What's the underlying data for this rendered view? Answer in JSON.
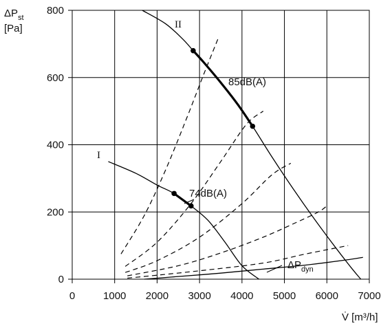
{
  "chart_data": {
    "type": "line",
    "x_axis": {
      "label": "V̇ [m³/h]",
      "ticks": [
        0,
        1000,
        2000,
        3000,
        4000,
        5000,
        6000,
        7000
      ],
      "range": [
        0,
        7000
      ]
    },
    "y_axis": {
      "label_line1": "ΔP",
      "label_line1_sub": "st",
      "label_line2": "[Pa]",
      "ticks": [
        0,
        200,
        400,
        600,
        800
      ],
      "range": [
        0,
        800
      ]
    },
    "grid": true,
    "series": [
      {
        "name": "I",
        "style": "solid",
        "points": [
          [
            850,
            350
          ],
          [
            1500,
            315
          ],
          [
            2000,
            280
          ],
          [
            2400,
            255
          ],
          [
            2800,
            218
          ],
          [
            3200,
            175
          ],
          [
            3600,
            110
          ],
          [
            4000,
            40
          ],
          [
            4400,
            0
          ]
        ],
        "operating_range": [
          [
            2400,
            255
          ],
          [
            2800,
            218
          ]
        ],
        "annotation": "74dB(A)"
      },
      {
        "name": "II",
        "style": "solid",
        "points": [
          [
            1650,
            800
          ],
          [
            2200,
            760
          ],
          [
            2600,
            715
          ],
          [
            2850,
            680
          ],
          [
            3100,
            645
          ],
          [
            3500,
            585
          ],
          [
            3900,
            520
          ],
          [
            4250,
            455
          ],
          [
            4700,
            365
          ],
          [
            5200,
            270
          ],
          [
            5700,
            180
          ],
          [
            6200,
            95
          ],
          [
            6600,
            30
          ],
          [
            6800,
            0
          ]
        ],
        "operating_range": [
          [
            2850,
            680
          ],
          [
            4250,
            455
          ]
        ],
        "annotation": "85dB(A)"
      },
      {
        "name": "ΔP",
        "name_sub": "dyn",
        "style": "solid",
        "points": [
          [
            1700,
            0
          ],
          [
            2500,
            8
          ],
          [
            3500,
            18
          ],
          [
            4500,
            30
          ],
          [
            5500,
            42
          ],
          [
            6500,
            58
          ],
          [
            6850,
            65
          ]
        ]
      }
    ],
    "system_curves": [
      {
        "points": [
          [
            1150,
            75
          ],
          [
            1700,
            190
          ],
          [
            2200,
            325
          ],
          [
            2700,
            480
          ],
          [
            3100,
            610
          ],
          [
            3450,
            720
          ]
        ]
      },
      {
        "points": [
          [
            1250,
            38
          ],
          [
            2000,
            110
          ],
          [
            2800,
            225
          ],
          [
            3500,
            350
          ],
          [
            4100,
            460
          ],
          [
            4500,
            500
          ]
        ]
      },
      {
        "points": [
          [
            1250,
            20
          ],
          [
            2000,
            55
          ],
          [
            3000,
            125
          ],
          [
            4000,
            225
          ],
          [
            4700,
            310
          ],
          [
            5150,
            345
          ]
        ]
      },
      {
        "points": [
          [
            1300,
            10
          ],
          [
            2500,
            40
          ],
          [
            3500,
            78
          ],
          [
            4500,
            125
          ],
          [
            5300,
            170
          ],
          [
            5800,
            200
          ],
          [
            6000,
            218
          ]
        ]
      },
      {
        "points": [
          [
            1300,
            3
          ],
          [
            3000,
            25
          ],
          [
            4500,
            48
          ],
          [
            5500,
            75
          ],
          [
            6500,
            100
          ]
        ]
      }
    ]
  }
}
